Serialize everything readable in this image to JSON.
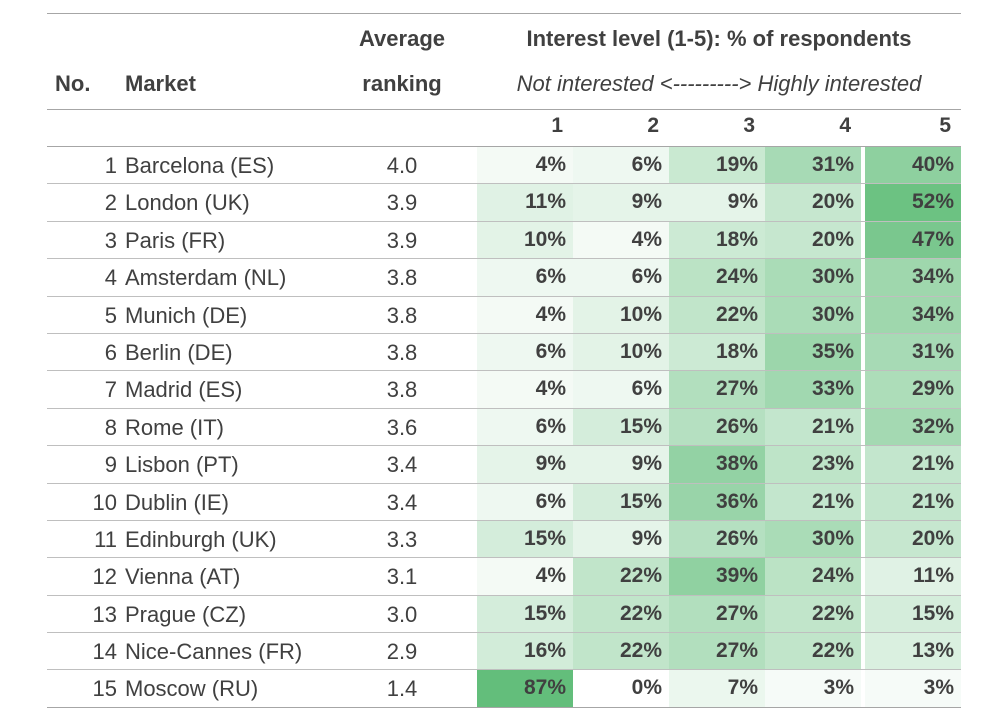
{
  "header": {
    "no": "No.",
    "market": "Market",
    "avg_line1": "Average",
    "avg_line2": "ranking",
    "interest_title": "Interest level (1-5): % of respondents",
    "scale": "Not interested <---------> Highly interested",
    "levels": [
      "1",
      "2",
      "3",
      "4",
      "5"
    ]
  },
  "colors": {
    "low": "#ffffff",
    "high": "#63be7b",
    "text": "#404040"
  },
  "rows": [
    {
      "no": "1",
      "market": "Barcelona (ES)",
      "avg": "4.0",
      "pcts": [
        "4%",
        "6%",
        "19%",
        "31%",
        "40%"
      ]
    },
    {
      "no": "2",
      "market": "London (UK)",
      "avg": "3.9",
      "pcts": [
        "11%",
        "9%",
        "9%",
        "20%",
        "52%"
      ]
    },
    {
      "no": "3",
      "market": "Paris (FR)",
      "avg": "3.9",
      "pcts": [
        "10%",
        "4%",
        "18%",
        "20%",
        "47%"
      ]
    },
    {
      "no": "4",
      "market": "Amsterdam (NL)",
      "avg": "3.8",
      "pcts": [
        "6%",
        "6%",
        "24%",
        "30%",
        "34%"
      ]
    },
    {
      "no": "5",
      "market": "Munich (DE)",
      "avg": "3.8",
      "pcts": [
        "4%",
        "10%",
        "22%",
        "30%",
        "34%"
      ]
    },
    {
      "no": "6",
      "market": "Berlin (DE)",
      "avg": "3.8",
      "pcts": [
        "6%",
        "10%",
        "18%",
        "35%",
        "31%"
      ]
    },
    {
      "no": "7",
      "market": "Madrid (ES)",
      "avg": "3.8",
      "pcts": [
        "4%",
        "6%",
        "27%",
        "33%",
        "29%"
      ]
    },
    {
      "no": "8",
      "market": "Rome (IT)",
      "avg": "3.6",
      "pcts": [
        "6%",
        "15%",
        "26%",
        "21%",
        "32%"
      ]
    },
    {
      "no": "9",
      "market": "Lisbon (PT)",
      "avg": "3.4",
      "pcts": [
        "9%",
        "9%",
        "38%",
        "23%",
        "21%"
      ]
    },
    {
      "no": "10",
      "market": "Dublin (IE)",
      "avg": "3.4",
      "pcts": [
        "6%",
        "15%",
        "36%",
        "21%",
        "21%"
      ]
    },
    {
      "no": "11",
      "market": "Edinburgh (UK)",
      "avg": "3.3",
      "pcts": [
        "15%",
        "9%",
        "26%",
        "30%",
        "20%"
      ]
    },
    {
      "no": "12",
      "market": "Vienna (AT)",
      "avg": "3.1",
      "pcts": [
        "4%",
        "22%",
        "39%",
        "24%",
        "11%"
      ]
    },
    {
      "no": "13",
      "market": "Prague (CZ)",
      "avg": "3.0",
      "pcts": [
        "15%",
        "22%",
        "27%",
        "22%",
        "15%"
      ]
    },
    {
      "no": "14",
      "market": "Nice-Cannes (FR)",
      "avg": "2.9",
      "pcts": [
        "16%",
        "22%",
        "27%",
        "22%",
        "13%"
      ]
    },
    {
      "no": "15",
      "market": "Moscow (RU)",
      "avg": "1.4",
      "pcts": [
        "87%",
        "0%",
        "7%",
        "3%",
        "3%"
      ]
    }
  ]
}
